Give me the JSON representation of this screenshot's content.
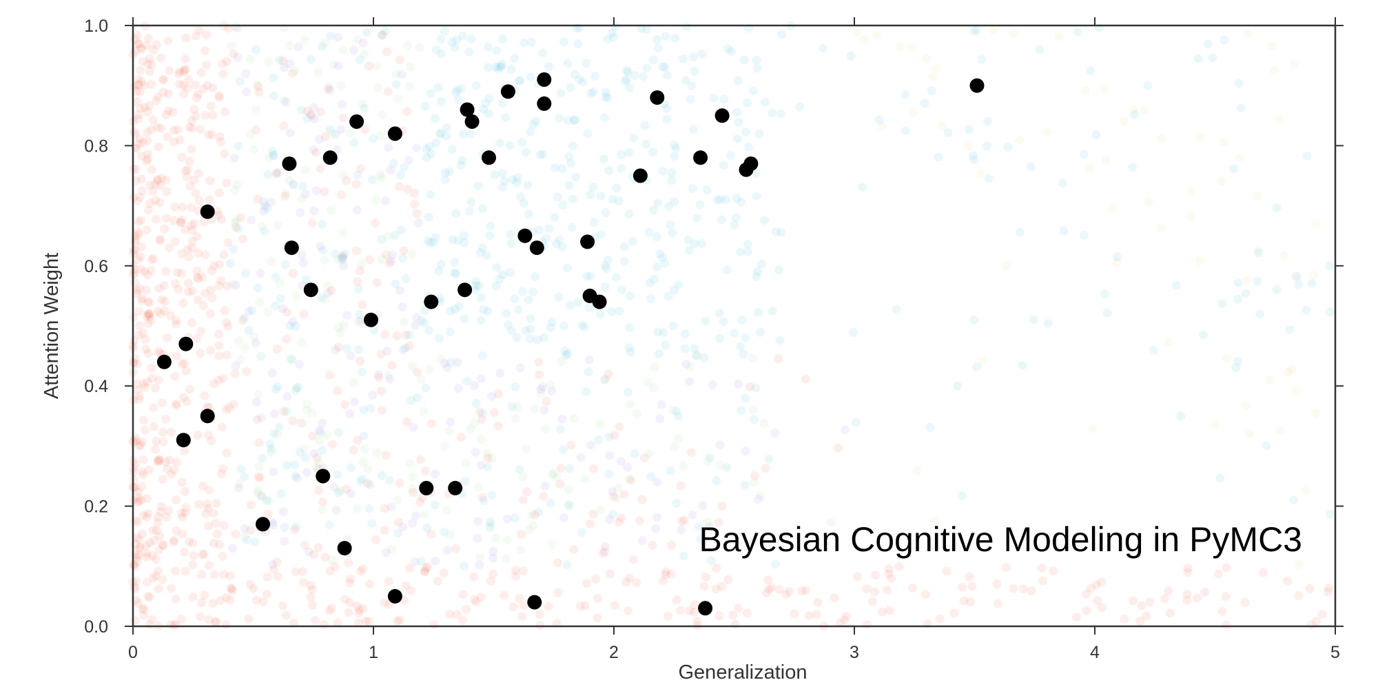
{
  "chart_data": {
    "type": "scatter",
    "title": "Bayesian Cognitive Modeling in PyMC3",
    "xlabel": "Generalization",
    "ylabel": "Attention Weight",
    "xlim": [
      0,
      5
    ],
    "ylim": [
      0,
      1
    ],
    "x_ticks": [
      "0",
      "1",
      "2",
      "3",
      "4",
      "5"
    ],
    "y_ticks": [
      "0.0",
      "0.2",
      "0.4",
      "0.6",
      "0.8",
      "1.0"
    ],
    "grid": false,
    "legend": "none",
    "background_cloud": {
      "description_colors": [
        "#f4735c",
        "#a48ee6",
        "#5cc8dc",
        "#a8dca0",
        "#e8d28a"
      ],
      "alpha": 0.12
    },
    "series": [
      {
        "color": "#000000",
        "points": [
          [
            0.13,
            0.44
          ],
          [
            0.22,
            0.47
          ],
          [
            0.21,
            0.31
          ],
          [
            0.31,
            0.35
          ],
          [
            0.31,
            0.69
          ],
          [
            0.54,
            0.17
          ],
          [
            0.65,
            0.77
          ],
          [
            0.66,
            0.63
          ],
          [
            0.74,
            0.56
          ],
          [
            0.79,
            0.25
          ],
          [
            0.82,
            0.78
          ],
          [
            0.88,
            0.13
          ],
          [
            0.93,
            0.84
          ],
          [
            0.99,
            0.51
          ],
          [
            1.09,
            0.82
          ],
          [
            1.09,
            0.05
          ],
          [
            1.22,
            0.23
          ],
          [
            1.24,
            0.54
          ],
          [
            1.34,
            0.23
          ],
          [
            1.38,
            0.56
          ],
          [
            1.39,
            0.86
          ],
          [
            1.41,
            0.84
          ],
          [
            1.48,
            0.78
          ],
          [
            1.56,
            0.89
          ],
          [
            1.63,
            0.65
          ],
          [
            1.67,
            0.04
          ],
          [
            1.68,
            0.63
          ],
          [
            1.71,
            0.91
          ],
          [
            1.71,
            0.87
          ],
          [
            1.89,
            0.64
          ],
          [
            1.9,
            0.55
          ],
          [
            1.94,
            0.54
          ],
          [
            2.11,
            0.75
          ],
          [
            2.18,
            0.88
          ],
          [
            2.36,
            0.78
          ],
          [
            2.38,
            0.03
          ],
          [
            2.45,
            0.85
          ],
          [
            2.55,
            0.76
          ],
          [
            2.57,
            0.77
          ],
          [
            3.51,
            0.9
          ]
        ]
      }
    ]
  }
}
